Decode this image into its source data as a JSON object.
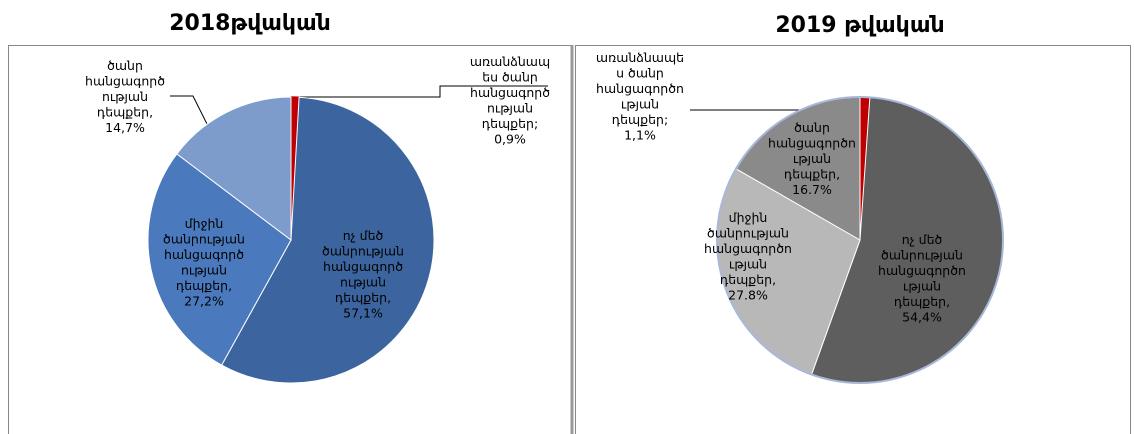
{
  "chart_data": [
    {
      "type": "pie",
      "title": "2018թվական",
      "categories": [
        "առանձնապ\nես ծանր\nհանցագործ\nության\nդեպքեր;",
        "ոչ մեծ\nծանրության\nհանցագործ\nության\nդեպքեր,",
        "միջին\nծանրության\nհանցագործ\nության\nդեպքեր,",
        "ծանր\nհանցագործ\nության\nդեպքեր,"
      ],
      "values": [
        0.9,
        57.1,
        27.2,
        14.7
      ],
      "value_labels": [
        "0,9%",
        "57,1%",
        "27,2%",
        "14,7%"
      ],
      "colors": [
        "#c00000",
        "#3c65a0",
        "#4a7abd",
        "#7d9bcb"
      ]
    },
    {
      "type": "pie",
      "title": "2019 թվական",
      "categories": [
        "առանձնապե\nս ծանր\nհանցագործո\nւթյան\nդեպքեր;",
        "ոչ մեծ\nծանրության\nհանցագործո\nւթյան\nդեպքեր,",
        "միջին\nծանրության\nհանցագործո\nւթյան\nդեպքեր,",
        "ծանր\nհանցագործո\nւթյան\nդեպքեր,"
      ],
      "values": [
        1.1,
        54.4,
        27.8,
        16.7
      ],
      "value_labels": [
        "1,1%",
        "54,4%",
        "27.8%",
        "16.7%"
      ],
      "colors": [
        "#c00000",
        "#5e5e5e",
        "#b8b8b8",
        "#8a8a8a"
      ]
    }
  ]
}
